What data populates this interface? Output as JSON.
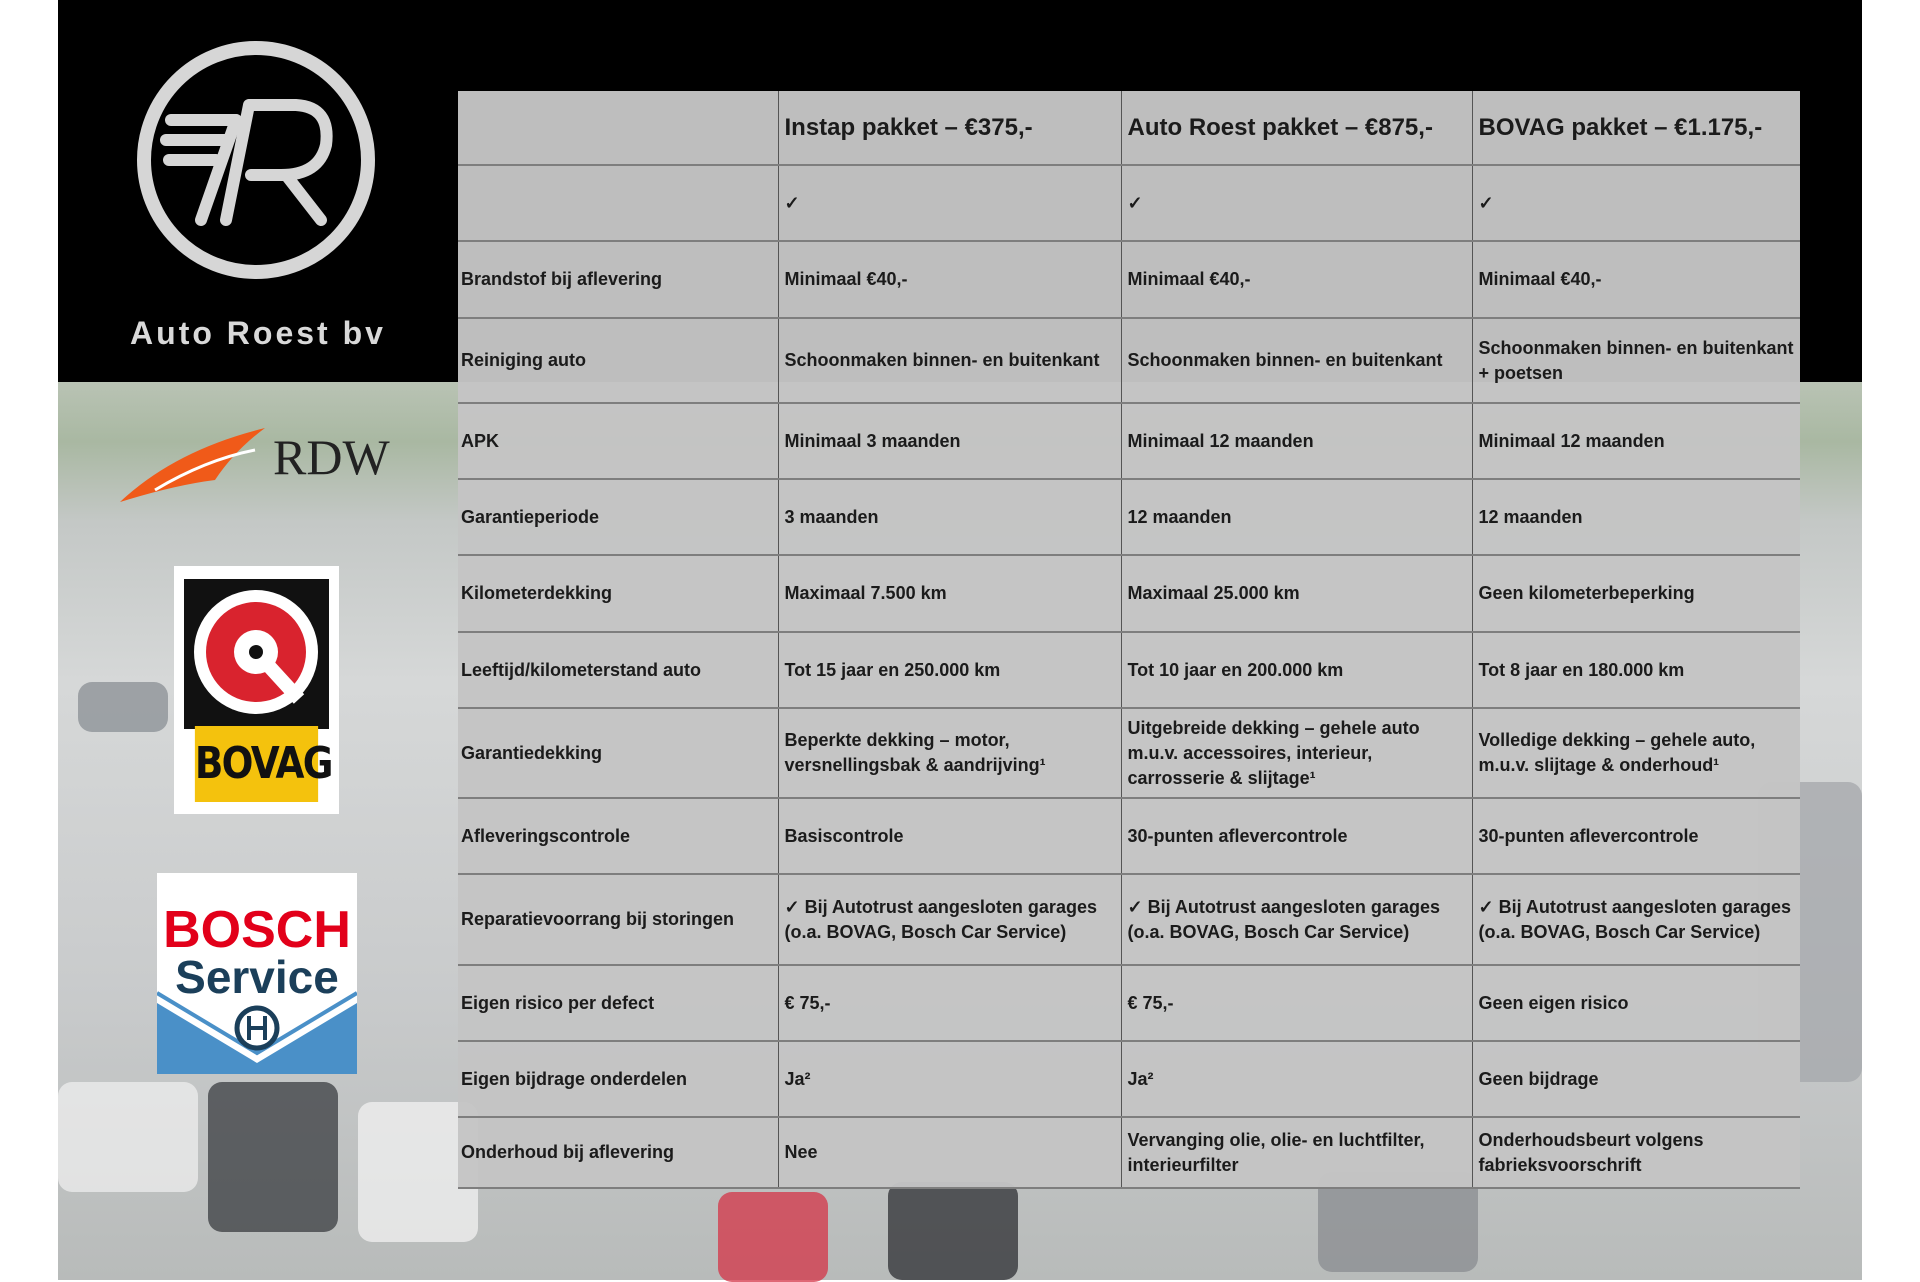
{
  "brand": {
    "name": "Auto Roest bv",
    "logo": "AR-circle-logo"
  },
  "badges": {
    "rdw": "RDW",
    "bovag": "BOVAG",
    "bosch_line1": "BOSCH",
    "bosch_line2": "Service"
  },
  "colors": {
    "bovag_yellow": "#f4c20d",
    "bosch_red": "#e2001a",
    "bosch_blue": "#4a90c8",
    "rdw_orange": "#f05a19"
  },
  "table": {
    "headers": [
      "",
      "Instap pakket – €375,-",
      "Auto Roest pakket – €875,-",
      "BOVAG pakket – €1.175,-"
    ],
    "rows": [
      [
        "",
        "✓",
        "✓",
        "✓"
      ],
      [
        "Brandstof bij aflevering",
        "Minimaal €40,-",
        "Minimaal €40,-",
        "Minimaal €40,-"
      ],
      [
        "Reiniging auto",
        "Schoonmaken binnen- en buitenkant",
        "Schoonmaken binnen- en buitenkant",
        "Schoonmaken binnen- en buitenkant + poetsen"
      ],
      [
        "APK",
        "Minimaal 3 maanden",
        "Minimaal 12 maanden",
        "Minimaal 12 maanden"
      ],
      [
        "Garantieperiode",
        "3 maanden",
        "12 maanden",
        "12 maanden"
      ],
      [
        "Kilometerdekking",
        "Maximaal 7.500 km",
        "Maximaal 25.000 km",
        "Geen kilometerbeperking"
      ],
      [
        "Leeftijd/kilometerstand auto",
        "Tot 15 jaar en 250.000 km",
        "Tot 10 jaar en 200.000 km",
        "Tot 8 jaar en 180.000 km"
      ],
      [
        "Garantiedekking",
        "Beperkte dekking – motor, versnellingsbak & aandrijving¹",
        "Uitgebreide dekking – gehele auto m.u.v. accessoires, interieur, carrosserie & slijtage¹",
        "Volledige dekking – gehele auto, m.u.v. slijtage & onderhoud¹"
      ],
      [
        "Afleveringscontrole",
        "Basiscontrole",
        "30-punten aflevercontrole",
        "30-punten aflevercontrole"
      ],
      [
        "Reparatievoorrang bij storingen",
        "✓ Bij Autotrust aangesloten garages (o.a. BOVAG, Bosch Car Service)",
        "✓ Bij Autotrust aangesloten garages (o.a. BOVAG, Bosch Car Service)",
        "✓ Bij Autotrust aangesloten garages (o.a. BOVAG, Bosch Car Service)"
      ],
      [
        "Eigen risico per defect",
        "€ 75,-",
        "€ 75,-",
        "Geen eigen risico"
      ],
      [
        "Eigen bijdrage onderdelen",
        "Ja²",
        "Ja²",
        "Geen bijdrage"
      ],
      [
        "Onderhoud bij aflevering",
        "Nee",
        "Vervanging olie, olie- en luchtfilter, interieurfilter",
        "Onderhoudsbeurt volgens fabrieksvoorschrift"
      ]
    ]
  }
}
